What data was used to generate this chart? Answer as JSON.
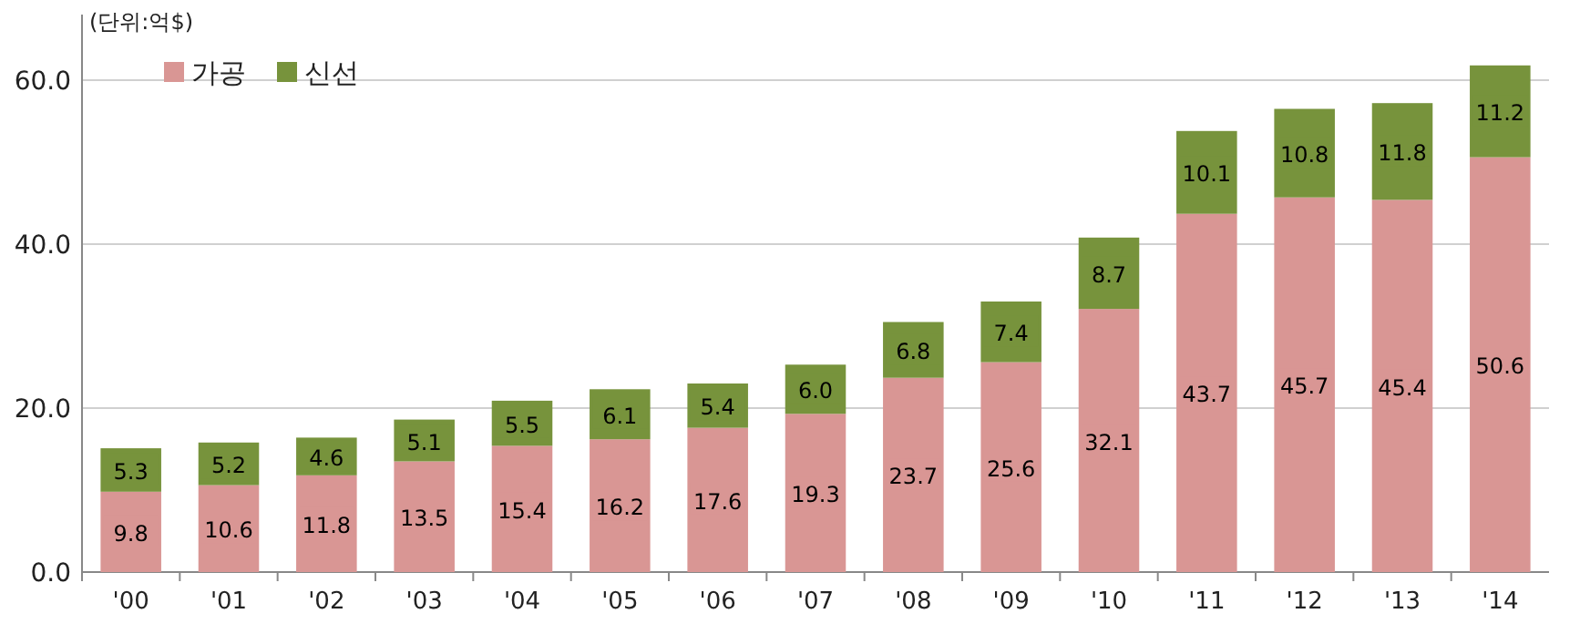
{
  "chart_data": {
    "type": "bar",
    "stacked": true,
    "annotations": [
      "(단위:억$)"
    ],
    "categories": [
      "'00",
      "'01",
      "'02",
      "'03",
      "'04",
      "'05",
      "'06",
      "'07",
      "'08",
      "'09",
      "'10",
      "'11",
      "'12",
      "'13",
      "'14"
    ],
    "series": [
      {
        "name": "가공",
        "color": "#d99694",
        "values": [
          9.8,
          10.6,
          11.8,
          13.5,
          15.4,
          16.2,
          17.6,
          19.3,
          23.7,
          25.6,
          32.1,
          43.7,
          45.7,
          45.4,
          50.6
        ],
        "value_labels": [
          "9.8",
          "10.6",
          "11.8",
          "13.5",
          "15.4",
          "16.2",
          "17.6",
          "19.3",
          "23.7",
          "25.6",
          "32.1",
          "43.7",
          "45.7",
          "45.4",
          "50.6"
        ]
      },
      {
        "name": "신선",
        "color": "#77933c",
        "values": [
          5.3,
          5.2,
          4.6,
          5.1,
          5.5,
          6.1,
          5.4,
          6.0,
          6.8,
          7.4,
          8.7,
          10.1,
          10.8,
          11.8,
          11.2
        ],
        "value_labels": [
          "5.3",
          "5.2",
          "4.6",
          "5.1",
          "5.5",
          "6.1",
          "5.4",
          "6.0",
          "6.8",
          "7.4",
          "8.7",
          "10.1",
          "10.8",
          "11.8",
          "11.2"
        ]
      }
    ],
    "ylim": [
      0,
      68
    ],
    "yticks": [
      {
        "value": 0,
        "label": "0.0"
      },
      {
        "value": 20,
        "label": "20.0"
      },
      {
        "value": 40,
        "label": "40.0"
      },
      {
        "value": 60,
        "label": "60.0"
      }
    ],
    "grid": "y",
    "legend": "top left"
  }
}
